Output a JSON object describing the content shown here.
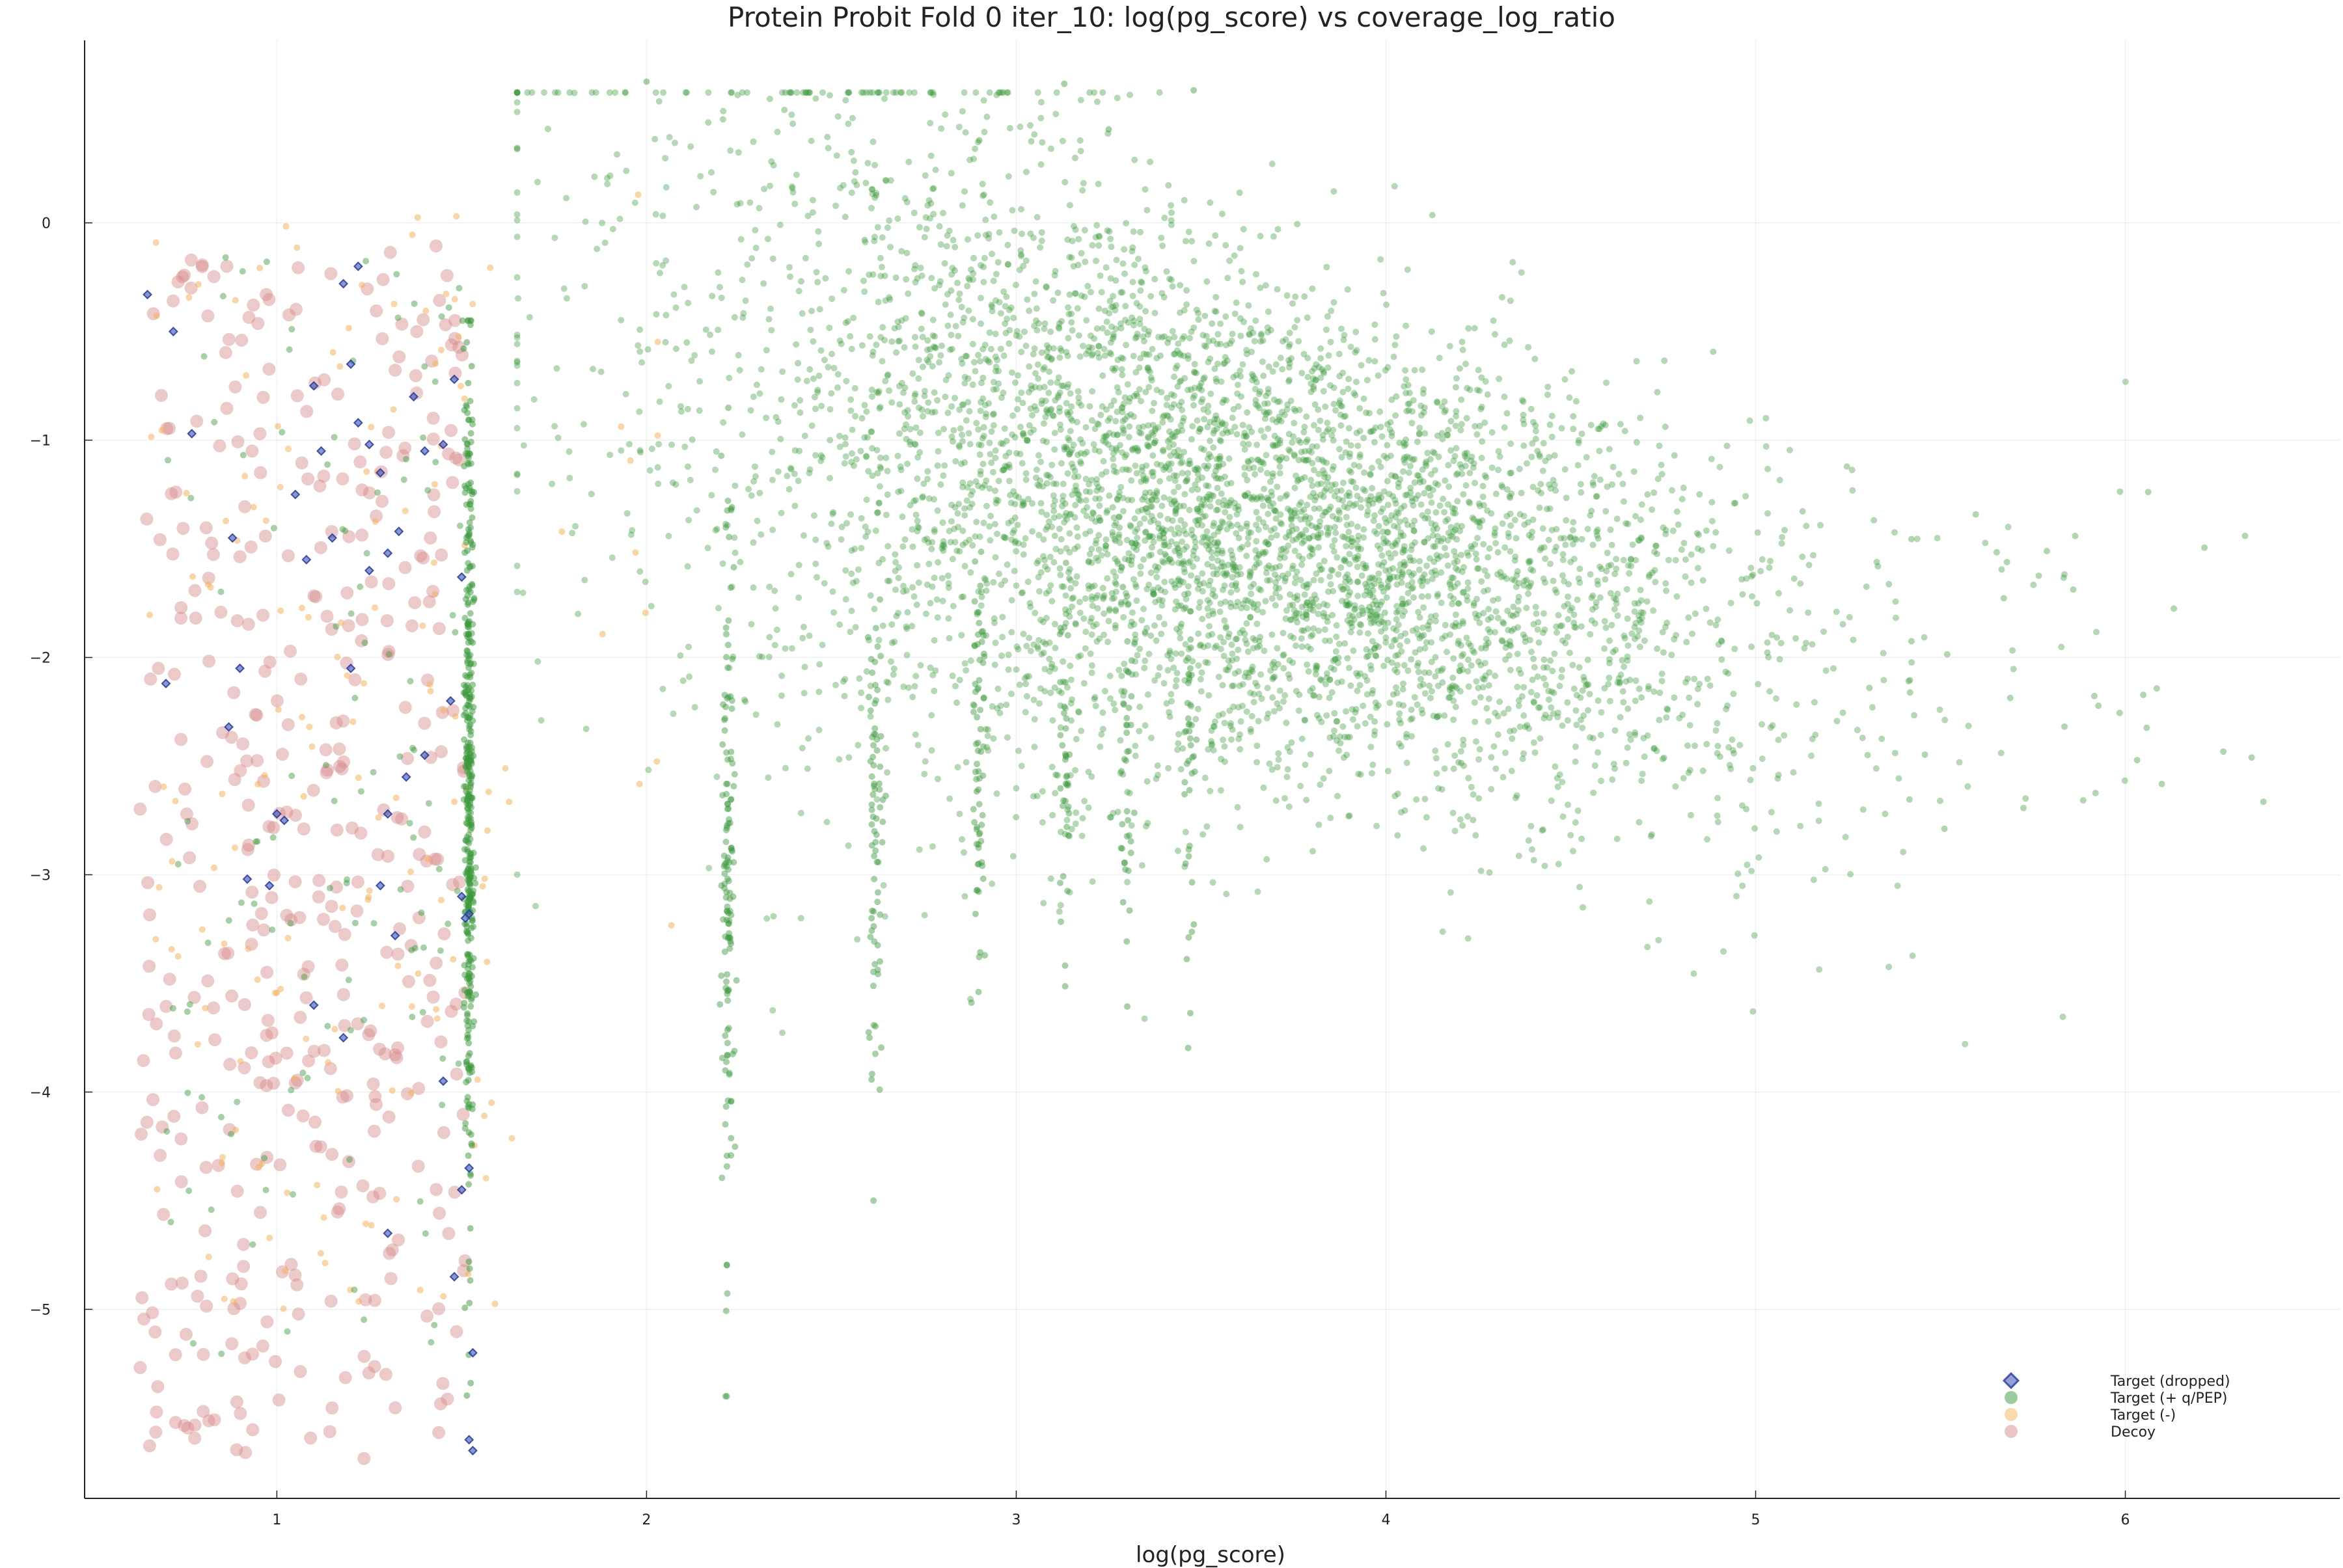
{
  "chart_data": {
    "type": "scatter",
    "title": "Protein Probit Fold 0 iter_10: log(pg_score) vs coverage_log_ratio",
    "xlabel": "log(pg_score)",
    "ylabel": "",
    "xlim": [
      0.48,
      6.58
    ],
    "ylim": [
      -5.87,
      0.84
    ],
    "x_ticks": [
      1,
      2,
      3,
      4,
      5,
      6
    ],
    "y_ticks": [
      0,
      -1,
      -2,
      -3,
      -4,
      -5
    ],
    "grid": true,
    "legend_position": "bottom-right",
    "series": [
      {
        "name": "Target (dropped)",
        "marker": "diamond",
        "color": "#2a3fa8",
        "points": [
          [
            0.65,
            -0.33
          ],
          [
            0.72,
            -0.5
          ],
          [
            0.77,
            -0.97
          ],
          [
            0.7,
            -2.12
          ],
          [
            0.88,
            -1.45
          ],
          [
            0.9,
            -2.05
          ],
          [
            0.87,
            -2.32
          ],
          [
            0.92,
            -3.02
          ],
          [
            0.98,
            -3.05
          ],
          [
            1.0,
            -2.72
          ],
          [
            1.05,
            -1.25
          ],
          [
            1.08,
            -1.55
          ],
          [
            1.1,
            -0.75
          ],
          [
            1.12,
            -1.05
          ],
          [
            1.15,
            -1.45
          ],
          [
            1.18,
            -0.28
          ],
          [
            1.2,
            -0.65
          ],
          [
            1.22,
            -0.92
          ],
          [
            1.25,
            -1.6
          ],
          [
            1.28,
            -1.15
          ],
          [
            1.3,
            -1.52
          ],
          [
            1.33,
            -1.42
          ],
          [
            1.35,
            -2.55
          ],
          [
            1.3,
            -2.72
          ],
          [
            1.28,
            -3.05
          ],
          [
            1.32,
            -3.28
          ],
          [
            1.4,
            -1.05
          ],
          [
            1.45,
            -1.02
          ],
          [
            1.48,
            -0.72
          ],
          [
            1.47,
            -2.2
          ],
          [
            1.5,
            -1.63
          ],
          [
            1.5,
            -3.1
          ],
          [
            1.51,
            -3.2
          ],
          [
            1.52,
            -3.18
          ],
          [
            1.5,
            -4.45
          ],
          [
            1.52,
            -4.35
          ],
          [
            1.53,
            -5.2
          ],
          [
            1.52,
            -5.6
          ],
          [
            1.53,
            -5.65
          ],
          [
            1.3,
            -4.65
          ],
          [
            1.18,
            -3.75
          ],
          [
            1.1,
            -3.6
          ],
          [
            1.02,
            -2.75
          ],
          [
            1.2,
            -2.05
          ],
          [
            1.4,
            -2.45
          ],
          [
            1.25,
            -1.02
          ],
          [
            1.37,
            -0.8
          ],
          [
            1.22,
            -0.2
          ],
          [
            1.45,
            -3.95
          ],
          [
            1.48,
            -4.85
          ]
        ]
      },
      {
        "name": "Target (+ q/PEP)",
        "marker": "circle",
        "color": "#3a9a3a"
      },
      {
        "name": "Target (-)",
        "marker": "circle",
        "color": "#f5b35c"
      },
      {
        "name": "Decoy",
        "marker": "circle",
        "color": "#d88a8a"
      }
    ]
  }
}
